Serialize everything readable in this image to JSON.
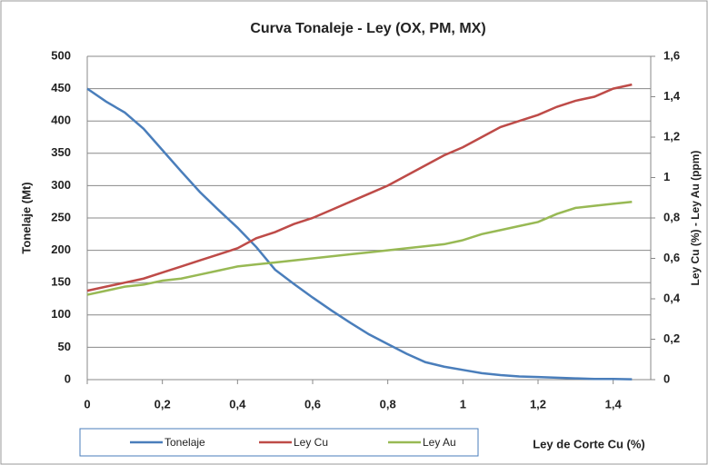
{
  "chart_data": {
    "type": "line",
    "title": "Curva Tonaleje - Ley (OX, PM, MX)",
    "x_label": "Ley de Corte Cu  (%)",
    "y_label": "Tonelaje  (Mt)",
    "y2_label": "Ley Cu (%) - Ley Au (ppm)",
    "x": [
      0,
      0.05,
      0.1,
      0.15,
      0.2,
      0.25,
      0.3,
      0.35,
      0.4,
      0.45,
      0.5,
      0.55,
      0.6,
      0.65,
      0.7,
      0.75,
      0.8,
      0.85,
      0.9,
      0.95,
      1.0,
      1.05,
      1.1,
      1.15,
      1.2,
      1.25,
      1.3,
      1.35,
      1.4,
      1.45
    ],
    "series": [
      {
        "name": "Tonelaje",
        "color": "#4a7ebb",
        "values": [
          450,
          430,
          413,
          388,
          355,
          322,
          290,
          262,
          235,
          205,
          170,
          148,
          127,
          107,
          88,
          70,
          55,
          40,
          27,
          20,
          15,
          10,
          7,
          5,
          4,
          3,
          2,
          1,
          1,
          0.5
        ]
      },
      {
        "name": "Ley Cu",
        "color": "#be4b48",
        "axis": "y2",
        "values": [
          0.44,
          0.46,
          0.48,
          0.5,
          0.53,
          0.56,
          0.59,
          0.62,
          0.65,
          0.7,
          0.73,
          0.77,
          0.8,
          0.84,
          0.88,
          0.92,
          0.96,
          1.01,
          1.06,
          1.11,
          1.15,
          1.2,
          1.25,
          1.28,
          1.31,
          1.35,
          1.38,
          1.4,
          1.44,
          1.46
        ]
      },
      {
        "name": "Ley Au",
        "color": "#98b954",
        "axis": "y2",
        "values": [
          0.42,
          0.44,
          0.46,
          0.47,
          0.49,
          0.5,
          0.52,
          0.54,
          0.56,
          0.57,
          0.58,
          0.59,
          0.6,
          0.61,
          0.62,
          0.63,
          0.64,
          0.65,
          0.66,
          0.67,
          0.69,
          0.72,
          0.74,
          0.76,
          0.78,
          0.82,
          0.85,
          0.86,
          0.87,
          0.88
        ]
      }
    ],
    "xlim": [
      0,
      1.5
    ],
    "xticks": [
      0,
      {
        "value": 0.2,
        "label": "0,2"
      },
      {
        "value": 0.4,
        "label": "0,4"
      },
      {
        "value": 0.6,
        "label": "0,6"
      },
      {
        "value": 0.8,
        "label": "0,8"
      },
      1,
      {
        "value": 1.2,
        "label": "1,2"
      },
      {
        "value": 1.4,
        "label": "1,4"
      }
    ],
    "ylim": [
      0,
      500
    ],
    "yticks": [
      0,
      50,
      100,
      150,
      200,
      250,
      300,
      350,
      400,
      450,
      500
    ],
    "y2lim": [
      0,
      1.6
    ],
    "y2ticks": [
      0,
      {
        "value": 0.2,
        "label": "0,2"
      },
      {
        "value": 0.4,
        "label": "0,4"
      },
      {
        "value": 0.6,
        "label": "0,6"
      },
      {
        "value": 0.8,
        "label": "0,8"
      },
      1,
      {
        "value": 1.2,
        "label": "1,2"
      },
      {
        "value": 1.4,
        "label": "1,4"
      },
      {
        "value": 1.6,
        "label": "1,6"
      }
    ],
    "grid": true,
    "legend": "bottom"
  }
}
